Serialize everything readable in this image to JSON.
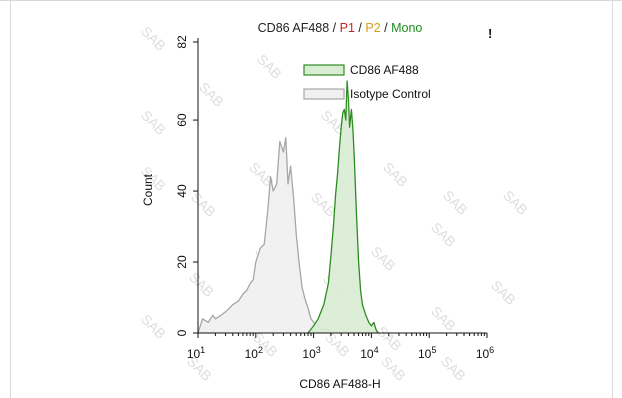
{
  "title_parts": [
    {
      "text": "CD86 AF488 / ",
      "color": "#222222"
    },
    {
      "text": "P1",
      "color": "#cc1f1f"
    },
    {
      "text": " / ",
      "color": "#222222"
    },
    {
      "text": "P2",
      "color": "#d4a017"
    },
    {
      "text": " / ",
      "color": "#222222"
    },
    {
      "text": "Mono",
      "color": "#1f8c1f"
    }
  ],
  "corner_mark": "!",
  "watermark": "SAB",
  "chart_data": {
    "type": "area",
    "xlabel": "CD86 AF488-H",
    "ylabel": "Count",
    "x_scale": "log",
    "xlim": [
      10,
      1000000
    ],
    "ylim": [
      0,
      82
    ],
    "x_ticks": [
      {
        "value": 10,
        "base": "10",
        "exp": "1"
      },
      {
        "value": 100,
        "base": "10",
        "exp": "2"
      },
      {
        "value": 1000,
        "base": "10",
        "exp": "3"
      },
      {
        "value": 10000,
        "base": "10",
        "exp": "4"
      },
      {
        "value": 100000,
        "base": "10",
        "exp": "5"
      },
      {
        "value": 1000000,
        "base": "10",
        "exp": "6"
      }
    ],
    "y_ticks": [
      0,
      20,
      40,
      60,
      82
    ],
    "y_tick_labels": [
      "0",
      "20",
      "40",
      "60",
      "82"
    ],
    "legend_position": "top-right",
    "grid": false,
    "series": [
      {
        "name": "CD86 AF488",
        "color": "#2e8b22",
        "fill": "#d9ecd4",
        "x": [
          800,
          1000,
          1200,
          1500,
          1800,
          2000,
          2200,
          2400,
          2600,
          2800,
          3000,
          3200,
          3400,
          3600,
          3800,
          4000,
          4200,
          4500,
          4800,
          5100,
          5500,
          6000,
          6500,
          7000,
          8000,
          9000,
          10000,
          11000,
          12000,
          13000
        ],
        "y": [
          0,
          2,
          4,
          8,
          14,
          22,
          30,
          39,
          45,
          52,
          58,
          62,
          63,
          60,
          71,
          66,
          58,
          63,
          57,
          48,
          34,
          20,
          12,
          8,
          5,
          3,
          2,
          3,
          1,
          0
        ]
      },
      {
        "name": "Isotype Control",
        "color": "#a6a6a6",
        "fill": "#f0f0f0",
        "x": [
          10,
          12,
          15,
          18,
          20,
          25,
          30,
          35,
          40,
          50,
          60,
          70,
          80,
          90,
          100,
          120,
          140,
          160,
          180,
          200,
          230,
          260,
          300,
          330,
          360,
          400,
          450,
          500,
          560,
          630,
          700,
          800,
          900,
          1000,
          1200,
          1500,
          1800,
          2000
        ],
        "y": [
          0,
          4,
          3,
          5,
          4,
          5,
          6,
          7,
          8,
          9,
          11,
          12,
          14,
          15,
          20,
          24,
          25,
          34,
          44,
          40,
          42,
          54,
          51,
          55,
          42,
          47,
          38,
          28,
          20,
          13,
          10,
          7,
          4,
          3,
          2,
          1,
          1,
          0
        ]
      }
    ]
  }
}
